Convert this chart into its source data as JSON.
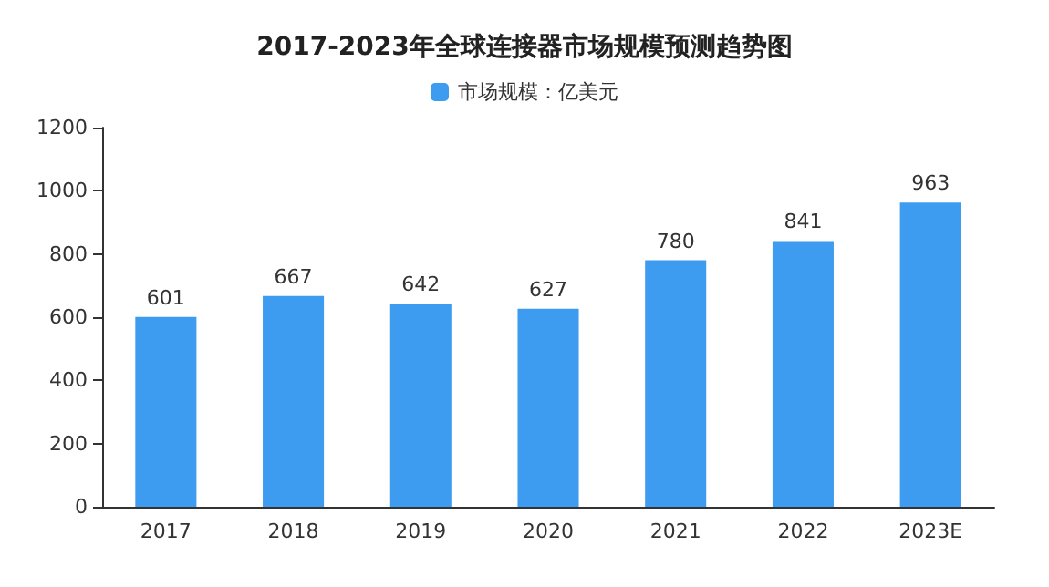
{
  "chart_data": {
    "type": "bar",
    "title": "2017-2023年全球连接器市场规模预测趋势图",
    "categories": [
      "2017",
      "2018",
      "2019",
      "2020",
      "2021",
      "2022",
      "2023E"
    ],
    "series": [
      {
        "name": "市场规模：亿美元",
        "color": "#3d9cf0",
        "values": [
          601,
          667,
          642,
          627,
          780,
          841,
          963
        ]
      }
    ],
    "ylim": [
      0,
      1200
    ],
    "yticks": [
      0,
      200,
      400,
      600,
      800,
      1000,
      1200
    ],
    "grid": false,
    "legend": "top",
    "data_labels": true
  }
}
